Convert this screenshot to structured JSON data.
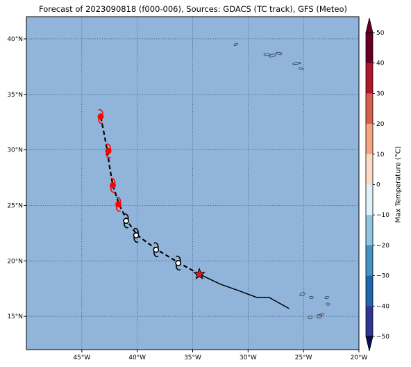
{
  "title": "Forecast of 2023090818 (f000-006), Sources: GDACS (TC track), GFS (Meteo)",
  "map": {
    "ocean_color": "#90b4da",
    "lon_range": [
      -50,
      -20
    ],
    "lat_range": [
      12,
      42
    ],
    "lat_ticks": [
      {
        "value": 40,
        "label": "40°N"
      },
      {
        "value": 35,
        "label": "35°N"
      },
      {
        "value": 30,
        "label": "30°N"
      },
      {
        "value": 25,
        "label": "25°N"
      },
      {
        "value": 20,
        "label": "20°N"
      },
      {
        "value": 15,
        "label": "15°N"
      }
    ],
    "lon_ticks": [
      {
        "value": -45,
        "label": "45°W"
      },
      {
        "value": -40,
        "label": "40°W"
      },
      {
        "value": -35,
        "label": "35°W"
      },
      {
        "value": -30,
        "label": "30°W"
      },
      {
        "value": -25,
        "label": "25°W"
      },
      {
        "value": -20,
        "label": "20°W"
      }
    ],
    "gridlines": "dotted"
  },
  "track": {
    "observed_path": [
      [
        -34.4,
        18.8
      ],
      [
        -32.5,
        17.9
      ],
      [
        -30.8,
        17.3
      ],
      [
        -29.2,
        16.7
      ],
      [
        -28.1,
        16.7
      ],
      [
        -26.3,
        15.7
      ]
    ],
    "forecast_path": [
      [
        -34.4,
        18.8
      ],
      [
        -36.2,
        19.8
      ],
      [
        -38.2,
        21.0
      ],
      [
        -40.0,
        22.3
      ],
      [
        -40.9,
        23.6
      ],
      [
        -41.6,
        25.0
      ],
      [
        -42.2,
        26.8
      ],
      [
        -42.5,
        28.5
      ],
      [
        -42.7,
        29.9
      ],
      [
        -43.0,
        31.5
      ],
      [
        -43.3,
        33.0
      ]
    ],
    "current_position": {
      "lon": -34.4,
      "lat": 18.8,
      "marker": "star-icon",
      "color": "#e31a1c"
    },
    "forecast_points": [
      {
        "lon": -36.3,
        "lat": 19.8,
        "color": "#000000",
        "fill": "#ffffff"
      },
      {
        "lon": -38.3,
        "lat": 21.0,
        "color": "#000000",
        "fill": "#ffffff"
      },
      {
        "lon": -40.1,
        "lat": 22.3,
        "color": "#000000",
        "fill": "#ffffff"
      },
      {
        "lon": -41.0,
        "lat": 23.6,
        "color": "#000000",
        "fill": "#ffffff"
      },
      {
        "lon": -41.7,
        "lat": 25.1,
        "color": "#ff0000",
        "fill": "#ff0000"
      },
      {
        "lon": -42.2,
        "lat": 26.8,
        "color": "#ff0000",
        "fill": "#ff0000"
      },
      {
        "lon": -42.6,
        "lat": 29.9,
        "color": "#ff0000",
        "fill": "#ff0000"
      },
      {
        "lon": -43.3,
        "lat": 33.0,
        "color": "#ff0000",
        "fill": "#ff0000"
      }
    ]
  },
  "islands": {
    "azores": [
      [
        -31.1,
        39.5
      ],
      [
        -28.3,
        38.6
      ],
      [
        -27.8,
        38.5
      ],
      [
        -27.2,
        38.7
      ],
      [
        -25.6,
        37.8
      ],
      [
        -25.2,
        37.3
      ]
    ],
    "cape_verde": [
      [
        -25.1,
        17.0
      ],
      [
        -24.3,
        16.7
      ],
      [
        -22.9,
        16.7
      ],
      [
        -22.8,
        16.1
      ],
      [
        -24.4,
        14.9
      ],
      [
        -23.6,
        15.0
      ],
      [
        -23.3,
        15.2
      ]
    ]
  },
  "colorbar": {
    "label": "Max Temperature (°C)",
    "ticks": [
      "50",
      "40",
      "30",
      "20",
      "10",
      "0",
      "−10",
      "−20",
      "−30",
      "−40",
      "−50"
    ],
    "segments": [
      "#67001f",
      "#b2182b",
      "#d6604d",
      "#f4a582",
      "#fddbc7",
      "#fff7e6",
      "#e0f3f8",
      "#92c5de",
      "#4393c3",
      "#2166ac",
      "#313695"
    ],
    "over_color": "#67001f",
    "under_color": "#0b0b5e"
  }
}
